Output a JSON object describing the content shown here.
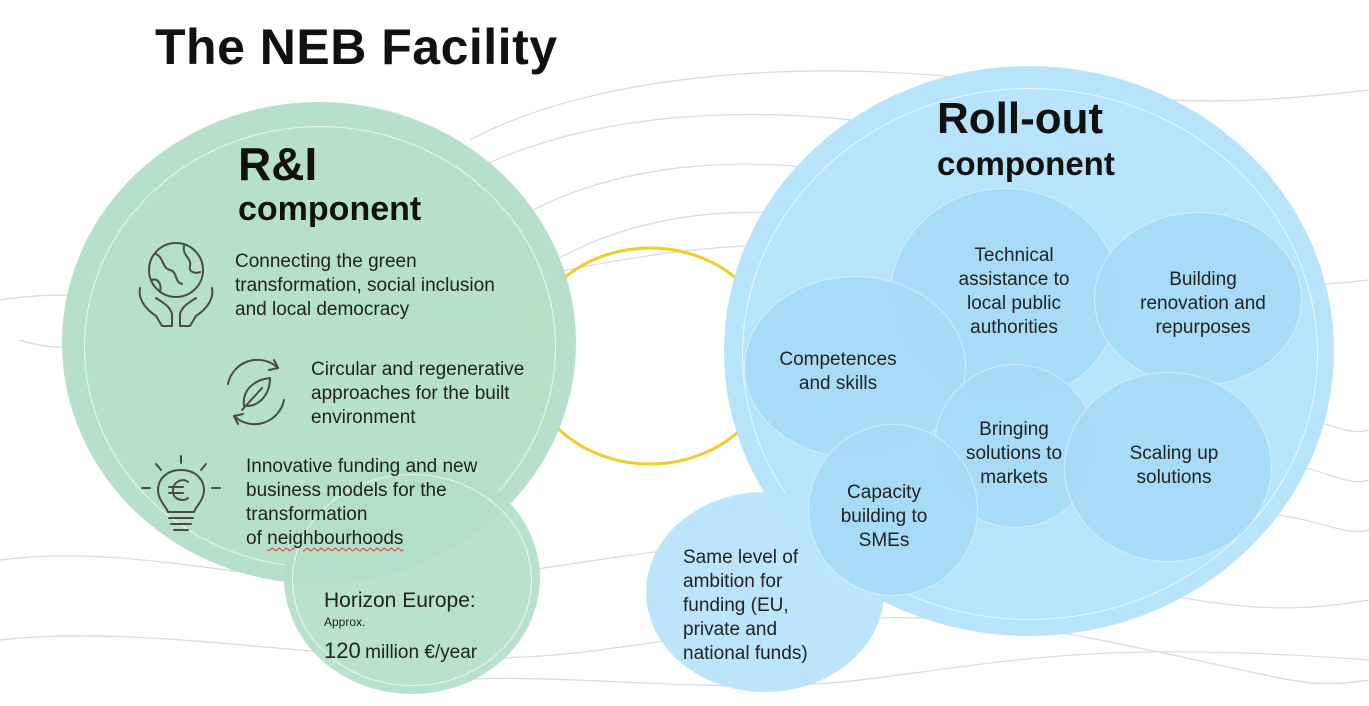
{
  "title": "The NEB Facility",
  "ri": {
    "heading": "R&I",
    "subheading": "component",
    "items": [
      {
        "icon": "globe-hands-icon",
        "lines": [
          "Connecting the green",
          "transformation, social inclusion",
          "and local democracy"
        ]
      },
      {
        "icon": "circular-leaf-icon",
        "lines": [
          "Circular and regenerative",
          "approaches for the built",
          "environment"
        ]
      },
      {
        "icon": "euro-lightbulb-icon",
        "lines": [
          "Innovative funding and new",
          "business models for the",
          "transformation"
        ],
        "last_prefix": "of ",
        "last_word": "neighbourhoods"
      }
    ]
  },
  "horizon": {
    "title": "Horizon Europe:",
    "small": "Approx.",
    "amount": "120",
    "unit": "million €/year"
  },
  "rollout": {
    "heading": "Roll-out",
    "subheading": "component",
    "bubbles": [
      {
        "lines": [
          "Technical",
          "assistance to",
          "local public",
          "authorities"
        ]
      },
      {
        "lines": [
          "Building",
          "renovation and",
          "repurposes"
        ]
      },
      {
        "lines": [
          "Competences",
          "and skills"
        ]
      },
      {
        "lines": [
          "Bringing",
          "solutions to",
          "markets"
        ]
      },
      {
        "lines": [
          "Scaling up",
          "solutions"
        ]
      },
      {
        "lines": [
          "Capacity",
          "building to",
          "SMEs"
        ]
      }
    ]
  },
  "funding": {
    "lines": [
      "Same level of",
      "ambition for",
      "funding (EU,",
      "private and",
      "national funds)"
    ]
  },
  "colors": {
    "green": "#b2dec9",
    "green_border": "#9fd2ba",
    "blue": "#b8e4fb",
    "blue_inner": "#9fd6f6",
    "yellow_ring": "#f2cb2c",
    "icon_stroke": "#4a4a4a"
  }
}
